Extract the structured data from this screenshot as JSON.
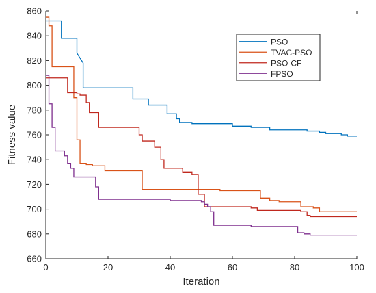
{
  "chart_data": {
    "type": "line",
    "xlabel": "Iteration",
    "ylabel": "Fitness  value",
    "xlim": [
      0,
      100
    ],
    "ylim": [
      660,
      860
    ],
    "xticks": [
      0,
      20,
      40,
      60,
      80,
      100
    ],
    "yticks": [
      660,
      680,
      700,
      720,
      740,
      760,
      780,
      800,
      820,
      840,
      860
    ],
    "grid": false,
    "legend_position": "top-right",
    "series": [
      {
        "name": "PSO",
        "color": "#0072BD",
        "step": true,
        "points": [
          [
            0,
            852
          ],
          [
            5,
            852
          ],
          [
            5,
            838
          ],
          [
            10,
            838
          ],
          [
            10,
            826
          ],
          [
            12,
            818
          ],
          [
            12,
            798
          ],
          [
            28,
            798
          ],
          [
            28,
            789
          ],
          [
            33,
            789
          ],
          [
            33,
            784
          ],
          [
            39,
            784
          ],
          [
            39,
            777
          ],
          [
            42,
            777
          ],
          [
            42,
            773
          ],
          [
            43,
            773
          ],
          [
            43,
            770
          ],
          [
            47,
            770
          ],
          [
            47,
            769
          ],
          [
            60,
            769
          ],
          [
            60,
            767
          ],
          [
            66,
            767
          ],
          [
            66,
            766
          ],
          [
            72,
            766
          ],
          [
            72,
            764
          ],
          [
            84,
            764
          ],
          [
            84,
            763
          ],
          [
            88,
            763
          ],
          [
            88,
            762
          ],
          [
            90,
            762
          ],
          [
            90,
            761
          ],
          [
            95,
            761
          ],
          [
            95,
            760
          ],
          [
            97,
            760
          ],
          [
            97,
            759
          ],
          [
            100,
            759
          ]
        ]
      },
      {
        "name": "TVAC-PSO",
        "color": "#D95319",
        "step": true,
        "points": [
          [
            0,
            855
          ],
          [
            1,
            855
          ],
          [
            1,
            848
          ],
          [
            2,
            848
          ],
          [
            2,
            815
          ],
          [
            9,
            815
          ],
          [
            9,
            790
          ],
          [
            10,
            790
          ],
          [
            10,
            756
          ],
          [
            11,
            756
          ],
          [
            11,
            737
          ],
          [
            13,
            737
          ],
          [
            13,
            736
          ],
          [
            15,
            736
          ],
          [
            15,
            735
          ],
          [
            19,
            735
          ],
          [
            19,
            731
          ],
          [
            31,
            731
          ],
          [
            31,
            716
          ],
          [
            56,
            716
          ],
          [
            56,
            715
          ],
          [
            69,
            715
          ],
          [
            69,
            709
          ],
          [
            72,
            709
          ],
          [
            72,
            707
          ],
          [
            75,
            707
          ],
          [
            75,
            706
          ],
          [
            82,
            706
          ],
          [
            82,
            702
          ],
          [
            86,
            702
          ],
          [
            86,
            701
          ],
          [
            88,
            701
          ],
          [
            88,
            698
          ],
          [
            100,
            698
          ]
        ]
      },
      {
        "name": "PSO-CF",
        "color": "#C0281E",
        "step": true,
        "points": [
          [
            0,
            806
          ],
          [
            7,
            806
          ],
          [
            7,
            794
          ],
          [
            10,
            794
          ],
          [
            10,
            793
          ],
          [
            11,
            793
          ],
          [
            11,
            792
          ],
          [
            13,
            792
          ],
          [
            13,
            786
          ],
          [
            14,
            786
          ],
          [
            14,
            778
          ],
          [
            17,
            778
          ],
          [
            17,
            766
          ],
          [
            30,
            766
          ],
          [
            30,
            760
          ],
          [
            31,
            760
          ],
          [
            31,
            755
          ],
          [
            35,
            755
          ],
          [
            35,
            750
          ],
          [
            37,
            750
          ],
          [
            37,
            740
          ],
          [
            38,
            740
          ],
          [
            38,
            733
          ],
          [
            44,
            733
          ],
          [
            44,
            730
          ],
          [
            47,
            730
          ],
          [
            47,
            728
          ],
          [
            49,
            728
          ],
          [
            49,
            712
          ],
          [
            51,
            712
          ],
          [
            51,
            702
          ],
          [
            66,
            702
          ],
          [
            66,
            701
          ],
          [
            68,
            701
          ],
          [
            68,
            699
          ],
          [
            82,
            699
          ],
          [
            82,
            698
          ],
          [
            84,
            698
          ],
          [
            84,
            695
          ],
          [
            85,
            695
          ],
          [
            85,
            694
          ],
          [
            100,
            694
          ]
        ]
      },
      {
        "name": "FPSO",
        "color": "#7E2F8E",
        "step": true,
        "points": [
          [
            0,
            808
          ],
          [
            1,
            808
          ],
          [
            1,
            785
          ],
          [
            2,
            785
          ],
          [
            2,
            766
          ],
          [
            3,
            766
          ],
          [
            3,
            747
          ],
          [
            6,
            747
          ],
          [
            6,
            743
          ],
          [
            7,
            743
          ],
          [
            7,
            737
          ],
          [
            8,
            737
          ],
          [
            8,
            733
          ],
          [
            9,
            733
          ],
          [
            9,
            726
          ],
          [
            16,
            726
          ],
          [
            16,
            718
          ],
          [
            17,
            718
          ],
          [
            17,
            708
          ],
          [
            40,
            708
          ],
          [
            40,
            707
          ],
          [
            50,
            707
          ],
          [
            50,
            706
          ],
          [
            51,
            706
          ],
          [
            51,
            704
          ],
          [
            52,
            704
          ],
          [
            52,
            702
          ],
          [
            53,
            702
          ],
          [
            53,
            698
          ],
          [
            54,
            698
          ],
          [
            54,
            687
          ],
          [
            66,
            687
          ],
          [
            66,
            686
          ],
          [
            81,
            686
          ],
          [
            81,
            681
          ],
          [
            83,
            681
          ],
          [
            83,
            680
          ],
          [
            85,
            680
          ],
          [
            85,
            679
          ],
          [
            100,
            679
          ]
        ]
      }
    ]
  }
}
